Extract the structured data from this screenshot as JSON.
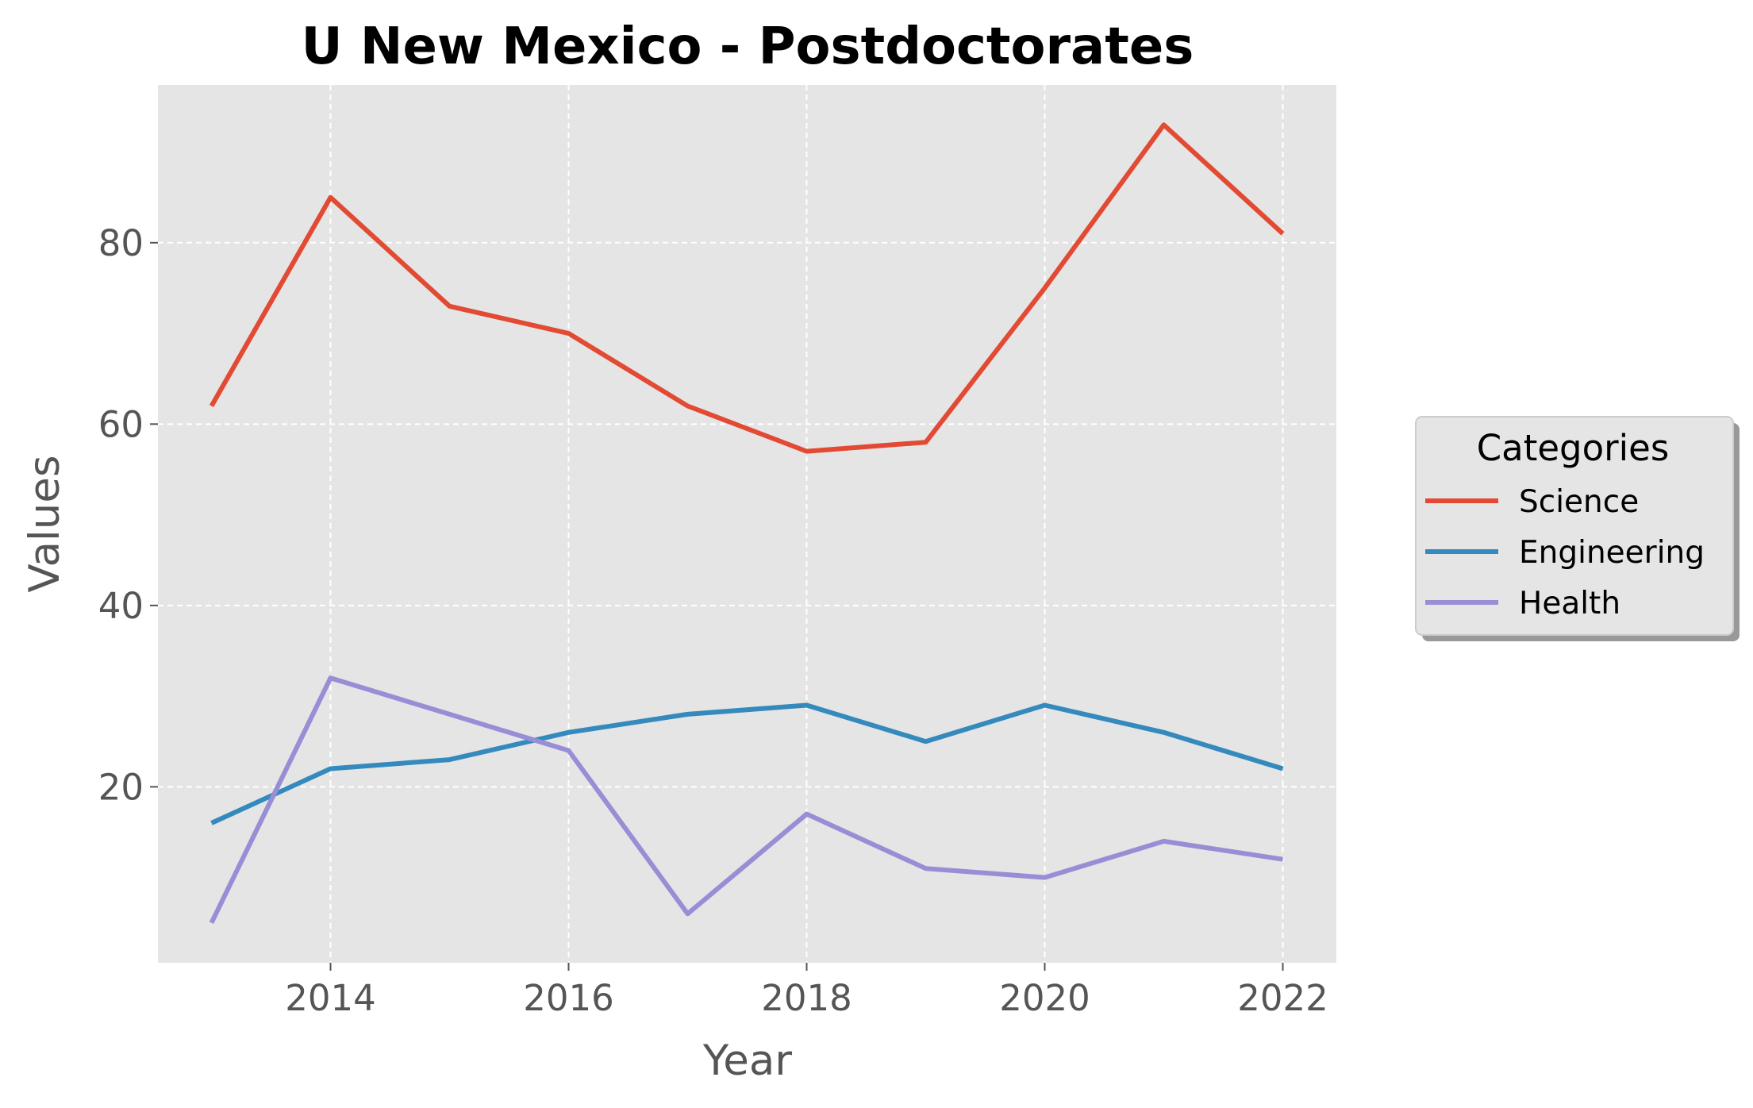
{
  "chart_data": {
    "type": "line",
    "title": "U New Mexico - Postdoctorates",
    "xlabel": "Year",
    "ylabel": "Values",
    "x": [
      2013,
      2014,
      2015,
      2016,
      2017,
      2018,
      2019,
      2020,
      2021,
      2022
    ],
    "xlim": [
      2012.55,
      2022.45
    ],
    "ylim": [
      0.6,
      97.4
    ],
    "x_ticks": [
      2014,
      2016,
      2018,
      2020,
      2022
    ],
    "y_ticks": [
      20,
      40,
      60,
      80
    ],
    "grid": true,
    "legend": {
      "title": "Categories",
      "placement": "right"
    },
    "series": [
      {
        "name": "Science",
        "color": "#E24A33",
        "values": [
          62,
          85,
          73,
          70,
          62,
          57,
          58,
          75,
          93,
          81
        ]
      },
      {
        "name": "Engineering",
        "color": "#348ABD",
        "values": [
          16,
          22,
          23,
          26,
          28,
          29,
          25,
          29,
          26,
          22
        ]
      },
      {
        "name": "Health",
        "color": "#988ED5",
        "values": [
          5,
          32,
          28,
          24,
          6,
          17,
          11,
          10,
          14,
          12
        ]
      }
    ]
  }
}
